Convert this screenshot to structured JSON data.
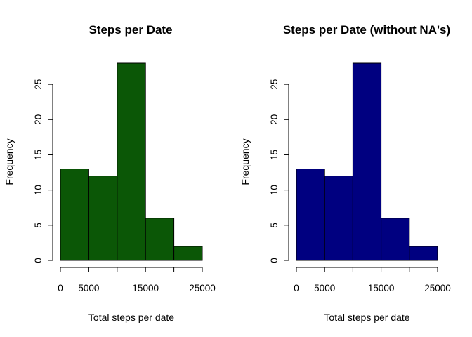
{
  "chart_data": [
    {
      "type": "bar",
      "title": "Steps per Date",
      "xlabel": "Total steps per date",
      "ylabel": "Frequency",
      "bins": [
        [
          0,
          5000
        ],
        [
          5000,
          10000
        ],
        [
          10000,
          15000
        ],
        [
          15000,
          20000
        ],
        [
          20000,
          25000
        ]
      ],
      "values": [
        13,
        12,
        28,
        6,
        2
      ],
      "xticks": [
        0,
        5000,
        15000,
        25000
      ],
      "xticks_minor": [
        10000,
        20000
      ],
      "yticks": [
        0,
        5,
        10,
        15,
        20,
        25
      ],
      "xlim": [
        0,
        25000
      ],
      "ylim": [
        0,
        28
      ],
      "color": "#0b5706",
      "grid": false
    },
    {
      "type": "bar",
      "title": "Steps per Date (without NA's)",
      "xlabel": "Total steps per date",
      "ylabel": "Frequency",
      "bins": [
        [
          0,
          5000
        ],
        [
          5000,
          10000
        ],
        [
          10000,
          15000
        ],
        [
          15000,
          20000
        ],
        [
          20000,
          25000
        ]
      ],
      "values": [
        13,
        12,
        28,
        6,
        2
      ],
      "xticks": [
        0,
        5000,
        15000,
        25000
      ],
      "xticks_minor": [
        10000,
        20000
      ],
      "yticks": [
        0,
        5,
        10,
        15,
        20,
        25
      ],
      "xlim": [
        0,
        25000
      ],
      "ylim": [
        0,
        28
      ],
      "color": "#000080",
      "grid": false
    }
  ]
}
